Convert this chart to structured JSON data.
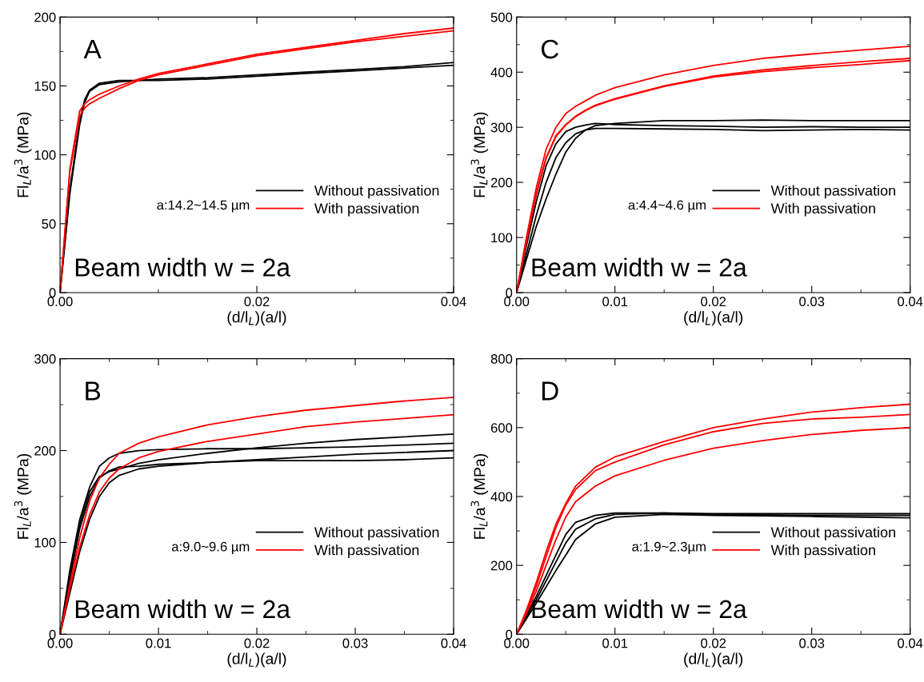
{
  "chart_data": [
    {
      "type": "line",
      "title": "A",
      "xlabel": "(d/l$_{L}$)(a/l)",
      "ylabel": "Fl$_{L}$/a$^{3}$ (MPa)",
      "annotations": [
        "a:14.2~14.5 µm",
        "Beam width w = 2a"
      ],
      "legend": "lower right",
      "grid": false,
      "marker": "none",
      "line_style": "solid",
      "xlim": [
        0,
        0.04
      ],
      "ylim": [
        0,
        200
      ],
      "xticks": [
        {
          "value": 0,
          "label": "0.00"
        },
        {
          "value": 0.01,
          "label": null
        },
        {
          "value": 0.02,
          "label": "0.02"
        },
        {
          "value": 0.03,
          "label": null
        },
        {
          "value": 0.04,
          "label": "0.04"
        }
      ],
      "yticks": [
        0,
        {
          "value": 25,
          "label": null
        },
        50,
        {
          "value": 75,
          "label": null
        },
        100,
        {
          "value": 125,
          "label": null
        },
        150,
        {
          "value": 175,
          "label": null
        },
        200
      ],
      "x": [
        0,
        0.001,
        0.002,
        0.0025,
        0.003,
        0.004,
        0.006,
        0.008,
        0.01,
        0.015,
        0.02,
        0.025,
        0.03,
        0.035,
        0.04
      ],
      "series": [
        {
          "name": "Without passivation",
          "color": "#000000",
          "values": [
            0,
            75,
            125,
            140,
            147,
            152,
            154,
            154,
            155,
            156,
            158,
            160,
            162,
            164,
            167
          ]
        },
        {
          "color": "#000000",
          "values": [
            0,
            72,
            122,
            138,
            146,
            151,
            153,
            154,
            154,
            155,
            157,
            159,
            161,
            163,
            165
          ]
        },
        {
          "name": "With passivation",
          "color": "#ff0000",
          "values": [
            0,
            90,
            132,
            137,
            140,
            144,
            150,
            155,
            159,
            166,
            173,
            178,
            183,
            188,
            192
          ]
        },
        {
          "color": "#ff0000",
          "values": [
            0,
            88,
            128,
            134,
            137,
            141,
            148,
            154,
            158,
            165,
            172,
            177,
            182,
            186,
            190
          ]
        }
      ]
    },
    {
      "type": "line",
      "title": "C",
      "xlabel": "(d/l$_{L}$)(a/l)",
      "ylabel": "Fl$_{L}$/a$^{3}$ (MPa)",
      "annotations": [
        "a:4.4~4.6 µm",
        "Beam width w = 2a"
      ],
      "legend": "lower right",
      "grid": false,
      "marker": "none",
      "line_style": "solid",
      "xlim": [
        0,
        0.04
      ],
      "ylim": [
        0,
        500
      ],
      "xticks": [
        {
          "value": 0,
          "label": "0.00"
        },
        {
          "value": 0.005,
          "label": null
        },
        {
          "value": 0.01,
          "label": "0.01"
        },
        {
          "value": 0.015,
          "label": null
        },
        {
          "value": 0.02,
          "label": "0.02"
        },
        {
          "value": 0.025,
          "label": null
        },
        {
          "value": 0.03,
          "label": "0.03"
        },
        {
          "value": 0.035,
          "label": null
        },
        {
          "value": 0.04,
          "label": "0.04"
        }
      ],
      "yticks": [
        0,
        {
          "value": 50,
          "label": null
        },
        100,
        {
          "value": 150,
          "label": null
        },
        200,
        {
          "value": 250,
          "label": null
        },
        300,
        {
          "value": 350,
          "label": null
        },
        400,
        {
          "value": 450,
          "label": null
        },
        500
      ],
      "x": [
        0,
        0.001,
        0.002,
        0.003,
        0.004,
        0.005,
        0.006,
        0.007,
        0.008,
        0.01,
        0.015,
        0.02,
        0.025,
        0.03,
        0.035,
        0.04
      ],
      "series": [
        {
          "name": "Without passivation",
          "color": "#000000",
          "values": [
            0,
            85,
            165,
            230,
            270,
            292,
            300,
            304,
            307,
            305,
            303,
            302,
            300,
            301,
            300,
            300
          ]
        },
        {
          "color": "#000000",
          "values": [
            0,
            70,
            140,
            200,
            245,
            272,
            288,
            295,
            298,
            298,
            297,
            296,
            294,
            295,
            296,
            295
          ]
        },
        {
          "color": "#000000",
          "values": [
            0,
            60,
            120,
            170,
            215,
            255,
            280,
            295,
            303,
            307,
            312,
            312,
            313,
            312,
            312,
            312
          ]
        },
        {
          "name": "With passivation",
          "color": "#ff0000",
          "values": [
            0,
            100,
            190,
            260,
            300,
            325,
            338,
            348,
            358,
            372,
            395,
            412,
            425,
            433,
            440,
            447
          ]
        },
        {
          "color": "#ff0000",
          "values": [
            0,
            95,
            180,
            245,
            285,
            305,
            320,
            331,
            340,
            352,
            375,
            393,
            404,
            412,
            419,
            425
          ]
        },
        {
          "color": "#ff0000",
          "values": [
            0,
            93,
            178,
            243,
            283,
            304,
            319,
            330,
            339,
            351,
            374,
            391,
            401,
            408,
            414,
            421
          ]
        }
      ]
    },
    {
      "type": "line",
      "title": "B",
      "xlabel": "(d/l$_{L}$)(a/l)",
      "ylabel": "Fl$_{L}$/a$^{3}$ (MPa)",
      "annotations": [
        "a:9.0~9.6 µm",
        "Beam width w = 2a"
      ],
      "legend": "lower right",
      "grid": false,
      "marker": "none",
      "line_style": "solid",
      "xlim": [
        0,
        0.04
      ],
      "ylim": [
        0,
        300
      ],
      "xticks": [
        {
          "value": 0,
          "label": "0.00"
        },
        {
          "value": 0.005,
          "label": null
        },
        {
          "value": 0.01,
          "label": "0.01"
        },
        {
          "value": 0.015,
          "label": null
        },
        {
          "value": 0.02,
          "label": "0.02"
        },
        {
          "value": 0.025,
          "label": null
        },
        {
          "value": 0.03,
          "label": "0.03"
        },
        {
          "value": 0.035,
          "label": null
        },
        {
          "value": 0.04,
          "label": "0.04"
        }
      ],
      "yticks": [
        0,
        {
          "value": 50,
          "label": null
        },
        100,
        {
          "value": 150,
          "label": null
        },
        200,
        {
          "value": 250,
          "label": null
        },
        300
      ],
      "x": [
        0,
        0.001,
        0.002,
        0.003,
        0.004,
        0.005,
        0.006,
        0.008,
        0.01,
        0.015,
        0.02,
        0.025,
        0.03,
        0.035,
        0.04
      ],
      "series": [
        {
          "name": "Without passivation",
          "color": "#000000",
          "values": [
            0,
            70,
            125,
            160,
            183,
            192,
            197,
            200,
            201,
            202,
            202,
            203,
            204,
            206,
            208
          ]
        },
        {
          "color": "#000000",
          "values": [
            0,
            65,
            120,
            155,
            172,
            177,
            180,
            186,
            190,
            197,
            203,
            208,
            212,
            215,
            218
          ]
        },
        {
          "color": "#000000",
          "values": [
            0,
            60,
            115,
            150,
            170,
            178,
            182,
            183,
            185,
            187,
            190,
            193,
            196,
            198,
            200
          ]
        },
        {
          "color": "#000000",
          "values": [
            0,
            45,
            90,
            125,
            150,
            165,
            173,
            180,
            183,
            187,
            189,
            189,
            189,
            190,
            192
          ]
        },
        {
          "name": "With passivation",
          "color": "#ff0000",
          "values": [
            0,
            55,
            105,
            145,
            170,
            185,
            197,
            208,
            215,
            228,
            237,
            244,
            249,
            254,
            258
          ]
        },
        {
          "color": "#ff0000",
          "values": [
            0,
            50,
            95,
            130,
            155,
            170,
            180,
            192,
            199,
            210,
            218,
            226,
            231,
            235,
            239
          ]
        }
      ]
    },
    {
      "type": "line",
      "title": "D",
      "xlabel": "(d/l$_{L}$)(a/l)",
      "ylabel": "Fl$_{L}$/a$^{3}$ (MPa)",
      "annotations": [
        "a:1.9~2.3µm",
        "Beam width w = 2a"
      ],
      "legend": "lower right",
      "grid": false,
      "marker": "none",
      "line_style": "solid",
      "xlim": [
        0,
        0.04
      ],
      "ylim": [
        0,
        800
      ],
      "xticks": [
        {
          "value": 0,
          "label": "0.00"
        },
        {
          "value": 0.005,
          "label": null
        },
        {
          "value": 0.01,
          "label": "0.01"
        },
        {
          "value": 0.015,
          "label": null
        },
        {
          "value": 0.02,
          "label": "0.02"
        },
        {
          "value": 0.025,
          "label": null
        },
        {
          "value": 0.03,
          "label": "0.03"
        },
        {
          "value": 0.035,
          "label": null
        },
        {
          "value": 0.04,
          "label": "0.04"
        }
      ],
      "yticks": [
        0,
        {
          "value": 100,
          "label": null
        },
        200,
        {
          "value": 300,
          "label": null
        },
        400,
        {
          "value": 500,
          "label": null
        },
        600,
        {
          "value": 700,
          "label": null
        },
        800
      ],
      "x": [
        0,
        0.001,
        0.002,
        0.003,
        0.004,
        0.005,
        0.006,
        0.008,
        0.01,
        0.015,
        0.02,
        0.025,
        0.03,
        0.035,
        0.04
      ],
      "series": [
        {
          "name": "Without passivation",
          "color": "#000000",
          "x": [
            0,
            0.002,
            0.004,
            0.005,
            0.006,
            0.008,
            0.01,
            0.015,
            0.02,
            0.03,
            0.04
          ],
          "values": [
            0,
            110,
            230,
            290,
            325,
            345,
            352,
            352,
            350,
            350,
            350
          ]
        },
        {
          "color": "#000000",
          "x": [
            0,
            0.002,
            0.004,
            0.005,
            0.006,
            0.008,
            0.01,
            0.015,
            0.02,
            0.03,
            0.04
          ],
          "values": [
            0,
            100,
            210,
            265,
            305,
            335,
            348,
            352,
            348,
            345,
            345
          ]
        },
        {
          "color": "#000000",
          "x": [
            0,
            0.002,
            0.004,
            0.005,
            0.006,
            0.008,
            0.01,
            0.015,
            0.02,
            0.03,
            0.04
          ],
          "values": [
            0,
            90,
            185,
            230,
            275,
            320,
            340,
            348,
            345,
            342,
            338
          ]
        },
        {
          "name": "With passivation",
          "color": "#ff0000",
          "values": [
            0,
            70,
            150,
            240,
            320,
            380,
            430,
            485,
            515,
            560,
            600,
            625,
            645,
            658,
            668
          ]
        },
        {
          "color": "#ff0000",
          "values": [
            0,
            65,
            140,
            225,
            310,
            375,
            420,
            475,
            500,
            550,
            588,
            612,
            625,
            630,
            638
          ]
        },
        {
          "color": "#ff0000",
          "values": [
            0,
            60,
            125,
            200,
            275,
            340,
            385,
            430,
            460,
            505,
            540,
            562,
            580,
            592,
            600
          ]
        }
      ]
    }
  ]
}
